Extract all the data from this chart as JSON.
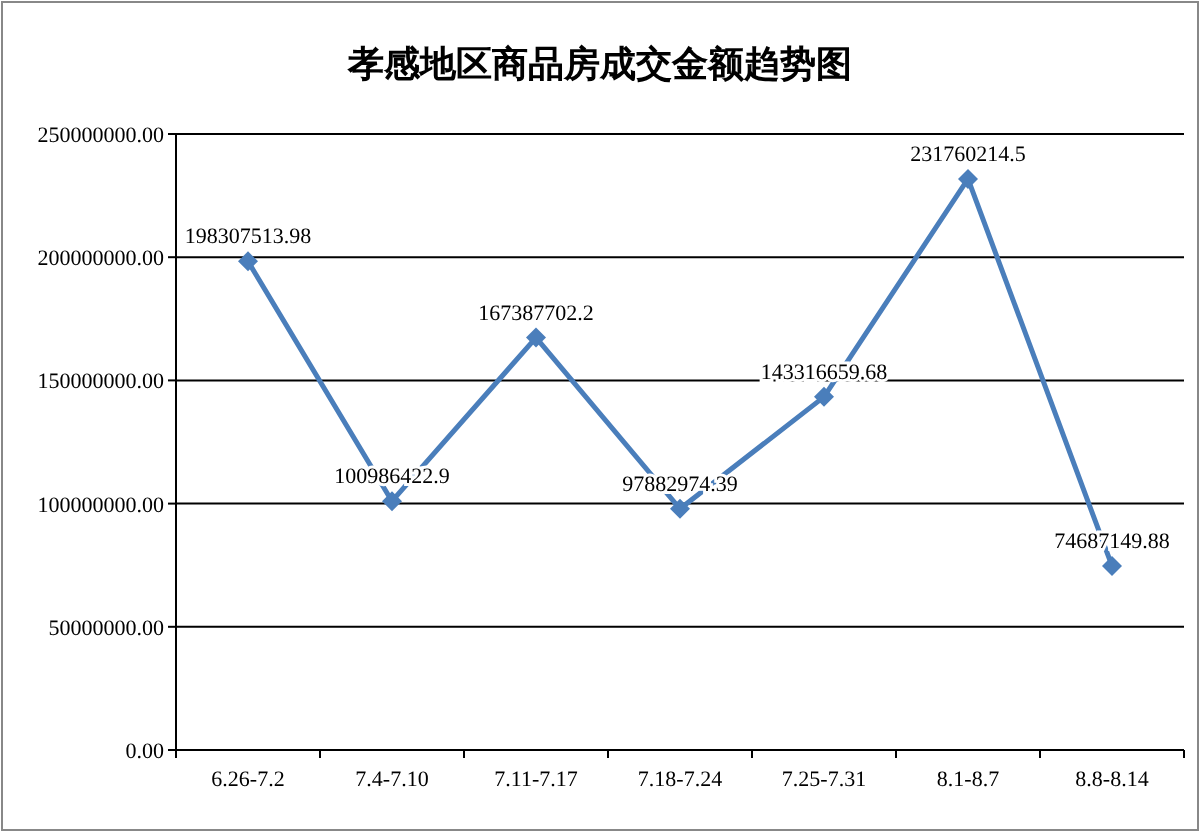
{
  "chart_data": {
    "type": "line",
    "title": "孝感地区商品房成交金额趋势图",
    "categories": [
      "6.26-7.2",
      "7.4-7.10",
      "7.11-7.17",
      "7.18-7.24",
      "7.25-7.31",
      "8.1-8.7",
      "8.8-8.14"
    ],
    "series": [
      {
        "color": "#4a7ebb",
        "values": [
          198307513.98,
          100986422.9,
          167387702.2,
          97882974.39,
          143316659.68,
          231760214.5,
          74687149.88
        ]
      }
    ],
    "ylim": [
      0,
      250000000
    ],
    "yticks": [
      {
        "value": 0,
        "label": "0.00"
      },
      {
        "value": 50000000,
        "label": "50000000.00"
      },
      {
        "value": 100000000,
        "label": "100000000.00"
      },
      {
        "value": 150000000,
        "label": "150000000.00"
      },
      {
        "value": 200000000,
        "label": "200000000.00"
      },
      {
        "value": 250000000,
        "label": "250000000.00"
      }
    ],
    "grid": "y",
    "marker": "diamond",
    "line_style": "solid",
    "data_labels": true
  }
}
